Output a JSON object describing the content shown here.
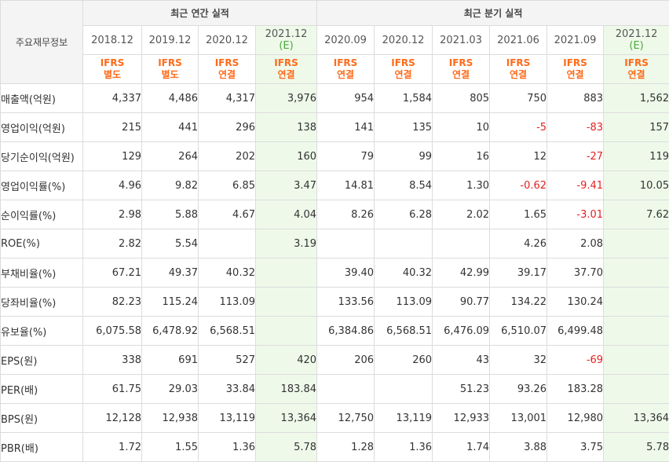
{
  "header": {
    "corner": "주요재무정보",
    "annual_group": "최근 연간 실적",
    "quarter_group": "최근 분기 실적"
  },
  "periods": [
    {
      "label": "2018.12",
      "est": "",
      "acct1": "IFRS",
      "acct2": "별도"
    },
    {
      "label": "2019.12",
      "est": "",
      "acct1": "IFRS",
      "acct2": "별도"
    },
    {
      "label": "2020.12",
      "est": "",
      "acct1": "IFRS",
      "acct2": "연결"
    },
    {
      "label": "2021.12",
      "est": "(E)",
      "acct1": "IFRS",
      "acct2": "연결"
    },
    {
      "label": "2020.09",
      "est": "",
      "acct1": "IFRS",
      "acct2": "연결"
    },
    {
      "label": "2020.12",
      "est": "",
      "acct1": "IFRS",
      "acct2": "연결"
    },
    {
      "label": "2021.03",
      "est": "",
      "acct1": "IFRS",
      "acct2": "연결"
    },
    {
      "label": "2021.06",
      "est": "",
      "acct1": "IFRS",
      "acct2": "연결"
    },
    {
      "label": "2021.09",
      "est": "",
      "acct1": "IFRS",
      "acct2": "연결"
    },
    {
      "label": "2021.12",
      "est": "(E)",
      "acct1": "IFRS",
      "acct2": "연결"
    }
  ],
  "rows": [
    {
      "label": "매출액(억원)",
      "values": [
        "4,337",
        "4,486",
        "4,317",
        "3,976",
        "954",
        "1,584",
        "805",
        "750",
        "883",
        "1,562"
      ]
    },
    {
      "label": "영업이익(억원)",
      "values": [
        "215",
        "441",
        "296",
        "138",
        "141",
        "135",
        "10",
        "-5",
        "-83",
        "157"
      ]
    },
    {
      "label": "당기순이익(억원)",
      "values": [
        "129",
        "264",
        "202",
        "160",
        "79",
        "99",
        "16",
        "12",
        "-27",
        "119"
      ]
    },
    {
      "label": "영업이익률(%)",
      "values": [
        "4.96",
        "9.82",
        "6.85",
        "3.47",
        "14.81",
        "8.54",
        "1.30",
        "-0.62",
        "-9.41",
        "10.05"
      ]
    },
    {
      "label": "순이익률(%)",
      "values": [
        "2.98",
        "5.88",
        "4.67",
        "4.04",
        "8.26",
        "6.28",
        "2.02",
        "1.65",
        "-3.01",
        "7.62"
      ]
    },
    {
      "label": "ROE(%)",
      "values": [
        "2.82",
        "5.54",
        "",
        "3.19",
        "",
        "",
        "",
        "4.26",
        "2.08",
        ""
      ]
    },
    {
      "label": "부채비율(%)",
      "values": [
        "67.21",
        "49.37",
        "40.32",
        "",
        "39.40",
        "40.32",
        "42.99",
        "39.17",
        "37.70",
        ""
      ]
    },
    {
      "label": "당좌비율(%)",
      "values": [
        "82.23",
        "115.24",
        "113.09",
        "",
        "133.56",
        "113.09",
        "90.77",
        "134.22",
        "130.24",
        ""
      ]
    },
    {
      "label": "유보율(%)",
      "values": [
        "6,075.58",
        "6,478.92",
        "6,568.51",
        "",
        "6,384.86",
        "6,568.51",
        "6,476.09",
        "6,510.07",
        "6,499.48",
        ""
      ]
    },
    {
      "label": "EPS(원)",
      "values": [
        "338",
        "691",
        "527",
        "420",
        "206",
        "260",
        "43",
        "32",
        "-69",
        ""
      ]
    },
    {
      "label": "PER(배)",
      "values": [
        "61.75",
        "29.03",
        "33.84",
        "183.84",
        "",
        "",
        "51.23",
        "93.26",
        "183.28",
        ""
      ]
    },
    {
      "label": "BPS(원)",
      "values": [
        "12,128",
        "12,938",
        "13,119",
        "13,364",
        "12,750",
        "13,119",
        "12,933",
        "13,001",
        "12,980",
        "13,364"
      ]
    },
    {
      "label": "PBR(배)",
      "values": [
        "1.72",
        "1.55",
        "1.36",
        "5.78",
        "1.28",
        "1.36",
        "1.74",
        "3.88",
        "3.75",
        "5.78"
      ]
    }
  ]
}
